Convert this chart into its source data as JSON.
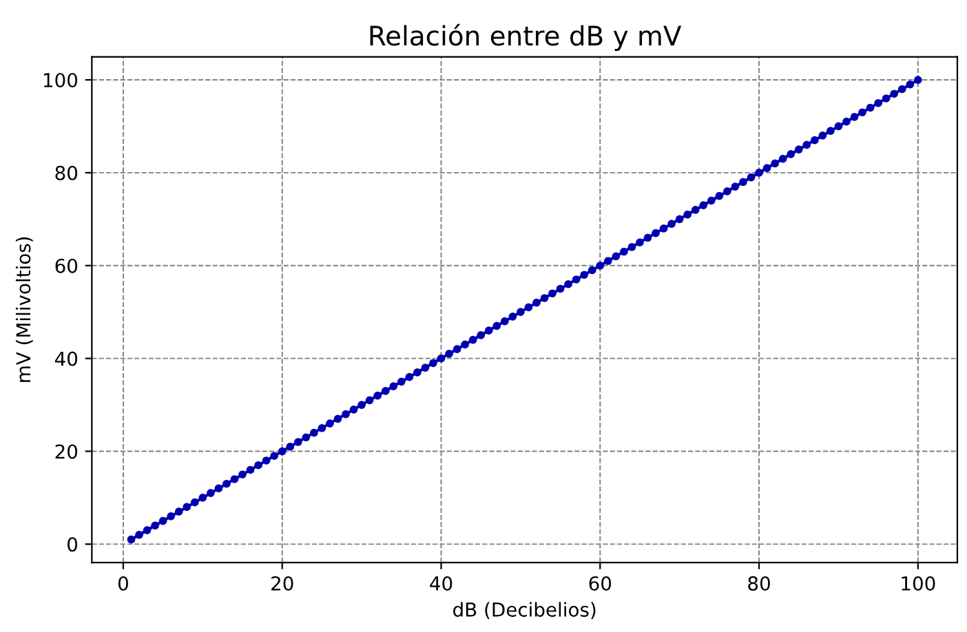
{
  "chart_data": {
    "type": "line",
    "title": "Relación entre dB y mV",
    "xlabel": "dB (Decibelios)",
    "ylabel": "mV (Milivoltios)",
    "x": [
      1,
      2,
      3,
      4,
      5,
      6,
      7,
      8,
      9,
      10,
      11,
      12,
      13,
      14,
      15,
      16,
      17,
      18,
      19,
      20,
      21,
      22,
      23,
      24,
      25,
      26,
      27,
      28,
      29,
      30,
      31,
      32,
      33,
      34,
      35,
      36,
      37,
      38,
      39,
      40,
      41,
      42,
      43,
      44,
      45,
      46,
      47,
      48,
      49,
      50,
      51,
      52,
      53,
      54,
      55,
      56,
      57,
      58,
      59,
      60,
      61,
      62,
      63,
      64,
      65,
      66,
      67,
      68,
      69,
      70,
      71,
      72,
      73,
      74,
      75,
      76,
      77,
      78,
      79,
      80,
      81,
      82,
      83,
      84,
      85,
      86,
      87,
      88,
      89,
      90,
      91,
      92,
      93,
      94,
      95,
      96,
      97,
      98,
      99,
      100
    ],
    "series": [
      {
        "color": "#0000b0",
        "values": [
          1,
          2,
          3,
          4,
          5,
          6,
          7,
          8,
          9,
          10,
          11,
          12,
          13,
          14,
          15,
          16,
          17,
          18,
          19,
          20,
          21,
          22,
          23,
          24,
          25,
          26,
          27,
          28,
          29,
          30,
          31,
          32,
          33,
          34,
          35,
          36,
          37,
          38,
          39,
          40,
          41,
          42,
          43,
          44,
          45,
          46,
          47,
          48,
          49,
          50,
          51,
          52,
          53,
          54,
          55,
          56,
          57,
          58,
          59,
          60,
          61,
          62,
          63,
          64,
          65,
          66,
          67,
          68,
          69,
          70,
          71,
          72,
          73,
          74,
          75,
          76,
          77,
          78,
          79,
          80,
          81,
          82,
          83,
          84,
          85,
          86,
          87,
          88,
          89,
          90,
          91,
          92,
          93,
          94,
          95,
          96,
          97,
          98,
          99,
          100
        ]
      }
    ],
    "xlim": [
      -3.95,
      104.95
    ],
    "ylim": [
      -3.95,
      104.95
    ],
    "xticks": [
      0,
      20,
      40,
      60,
      80,
      100
    ],
    "yticks": [
      0,
      20,
      40,
      60,
      80,
      100
    ],
    "grid": true,
    "marker": "circle"
  }
}
